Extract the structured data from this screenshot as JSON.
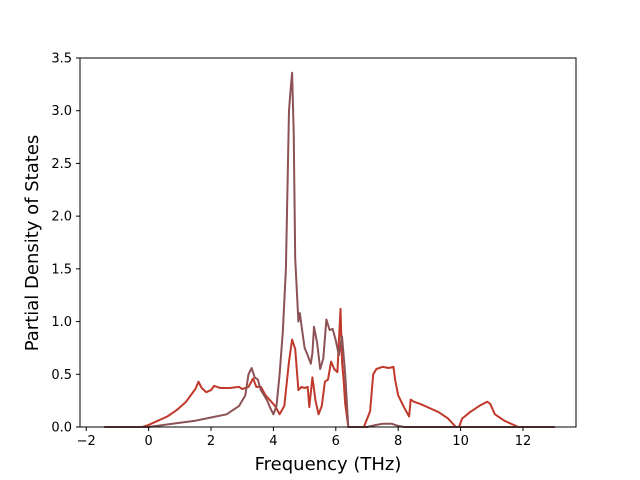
{
  "chart_data": {
    "type": "line",
    "title": "",
    "xlabel": "Frequency (THz)",
    "ylabel": "Partial Density of States",
    "xlim": [
      -2.2,
      13.7
    ],
    "ylim": [
      0,
      3.5
    ],
    "xticks": [
      -2,
      0,
      2,
      4,
      6,
      8,
      10,
      12
    ],
    "yticks": [
      0.0,
      0.5,
      1.0,
      1.5,
      2.0,
      2.5,
      3.0,
      3.5
    ],
    "xtick_labels": [
      "−2",
      "0",
      "2",
      "4",
      "6",
      "8",
      "10",
      "12"
    ],
    "ytick_labels": [
      "0.0",
      "0.5",
      "1.0",
      "1.5",
      "2.0",
      "2.5",
      "3.0",
      "3.5"
    ],
    "grid": false,
    "legend": "none",
    "series": [
      {
        "color": "#c0392b",
        "x": [
          -1.4,
          -0.2,
          0,
          0.3,
          0.6,
          0.9,
          1.2,
          1.5,
          1.6,
          1.7,
          1.85,
          2.0,
          2.1,
          2.3,
          2.6,
          2.9,
          3.0,
          3.2,
          3.35,
          3.45,
          3.6,
          3.75,
          3.9,
          4.05,
          4.2,
          4.35,
          4.5,
          4.6,
          4.7,
          4.8,
          4.9,
          5.0,
          5.1,
          5.15,
          5.25,
          5.35,
          5.45,
          5.55,
          5.65,
          5.75,
          5.85,
          5.95,
          6.05,
          6.15,
          6.2,
          6.25,
          6.3,
          6.4,
          6.5,
          6.9,
          7.1,
          7.2,
          7.3,
          7.5,
          7.7,
          7.85,
          7.9,
          8.0,
          8.2,
          8.35,
          8.4,
          8.5,
          8.7,
          9.0,
          9.3,
          9.6,
          9.85,
          9.95,
          10.05,
          10.3,
          10.6,
          10.85,
          10.95,
          11.1,
          11.4,
          11.7,
          11.85,
          12.5,
          13.0
        ],
        "y": [
          0,
          0,
          0.02,
          0.06,
          0.1,
          0.16,
          0.24,
          0.36,
          0.43,
          0.37,
          0.33,
          0.35,
          0.39,
          0.37,
          0.37,
          0.38,
          0.36,
          0.38,
          0.46,
          0.38,
          0.38,
          0.3,
          0.25,
          0.2,
          0.12,
          0.2,
          0.62,
          0.83,
          0.74,
          0.35,
          0.38,
          0.37,
          0.38,
          0.19,
          0.47,
          0.25,
          0.12,
          0.2,
          0.43,
          0.45,
          0.62,
          0.55,
          0.52,
          1.12,
          0.62,
          0.45,
          0.22,
          0.0,
          0.0,
          0.0,
          0.15,
          0.5,
          0.55,
          0.57,
          0.56,
          0.57,
          0.45,
          0.3,
          0.18,
          0.1,
          0.26,
          0.24,
          0.22,
          0.18,
          0.14,
          0.08,
          0.0,
          0.0,
          0.08,
          0.14,
          0.2,
          0.24,
          0.22,
          0.12,
          0.06,
          0.02,
          0.0,
          0.0,
          0.0
        ]
      },
      {
        "color": "#8c5256",
        "x": [
          -1.4,
          0,
          0.5,
          1.0,
          1.5,
          2.0,
          2.5,
          2.9,
          3.1,
          3.2,
          3.3,
          3.4,
          3.5,
          3.6,
          3.7,
          3.8,
          3.9,
          4.0,
          4.1,
          4.2,
          4.3,
          4.4,
          4.5,
          4.55,
          4.6,
          4.65,
          4.7,
          4.8,
          4.85,
          4.9,
          5.0,
          5.1,
          5.2,
          5.25,
          5.3,
          5.4,
          5.5,
          5.6,
          5.7,
          5.8,
          5.9,
          6.0,
          6.1,
          6.2,
          6.3,
          6.4,
          6.5,
          7.0,
          7.3,
          7.5,
          7.8,
          8.0,
          8.2,
          8.5,
          10.0,
          12.0,
          13.0
        ],
        "y": [
          0,
          0,
          0.02,
          0.04,
          0.06,
          0.09,
          0.12,
          0.2,
          0.3,
          0.5,
          0.56,
          0.47,
          0.45,
          0.35,
          0.3,
          0.25,
          0.18,
          0.12,
          0.2,
          0.5,
          0.9,
          1.5,
          3.0,
          3.2,
          3.36,
          2.8,
          1.6,
          1.0,
          1.08,
          0.96,
          0.75,
          0.68,
          0.6,
          0.7,
          0.95,
          0.8,
          0.55,
          0.65,
          1.02,
          0.92,
          0.93,
          0.82,
          0.68,
          0.86,
          0.5,
          0.0,
          0.0,
          0.0,
          0.02,
          0.03,
          0.03,
          0.01,
          0.0,
          0.0,
          0.0,
          0.0,
          0.0
        ]
      }
    ]
  }
}
